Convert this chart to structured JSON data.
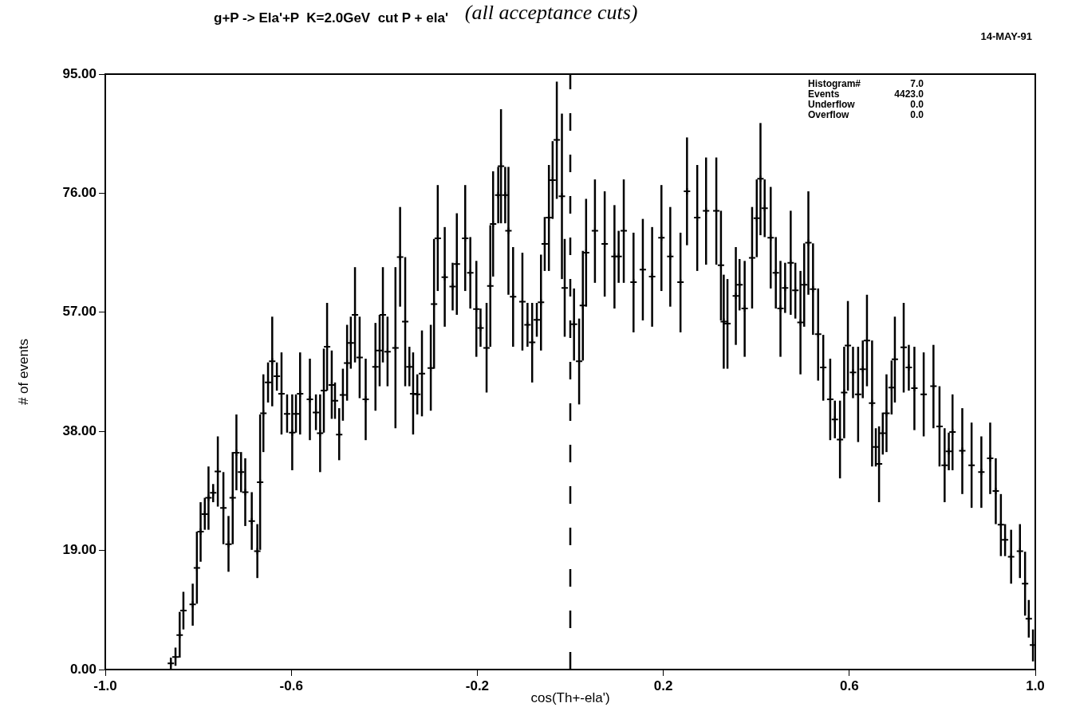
{
  "chart_data": {
    "type": "scatter",
    "title": "g+P -> Ela'+P  K=2.0GeV  cut P + ela'",
    "xlabel": "cos(Th+-ela')",
    "ylabel": "# of events",
    "annotations": [
      "(all acceptance cuts)",
      "14-MAY-91",
      "Histogram#  7.0",
      "Events  4423.0",
      "Underflow  0.0",
      "Overflow  0.0"
    ],
    "xlim": [
      -1,
      1
    ],
    "xticks": [
      {
        "value": -1,
        "label": "-1.0"
      },
      -0.6,
      -0.2,
      0.2,
      0.6,
      {
        "value": 1,
        "label": "1.0"
      }
    ],
    "ylim": [
      0,
      95
    ],
    "yticks": [
      {
        "value": 0,
        "label": "0.00"
      },
      {
        "value": 19,
        "label": "19.00"
      },
      {
        "value": 38,
        "label": "38.00"
      },
      {
        "value": 57,
        "label": "57.00"
      },
      {
        "value": 76,
        "label": "76.00"
      },
      {
        "value": 95,
        "label": "95.00"
      }
    ],
    "grid": false,
    "legend": false,
    "marker": "cross",
    "ref_lines": [
      {
        "axis": "x",
        "value": 0,
        "line_style": "dashed",
        "color": "#000000"
      }
    ],
    "series": [
      {
        "color": "#000000",
        "x": [
          -0.859,
          -0.849,
          -0.84,
          -0.832,
          -0.812,
          -0.803,
          -0.795,
          -0.786,
          -0.778,
          -0.768,
          -0.758,
          -0.746,
          -0.735,
          -0.726,
          -0.718,
          -0.708,
          -0.699,
          -0.685,
          -0.673,
          -0.667,
          -0.66,
          -0.65,
          -0.641,
          -0.631,
          -0.621,
          -0.609,
          -0.598,
          -0.59,
          -0.581,
          -0.56,
          -0.547,
          -0.538,
          -0.53,
          -0.523,
          -0.513,
          -0.506,
          -0.497,
          -0.489,
          -0.48,
          -0.472,
          -0.463,
          -0.453,
          -0.44,
          -0.419,
          -0.41,
          -0.403,
          -0.393,
          -0.376,
          -0.366,
          -0.355,
          -0.346,
          -0.338,
          -0.329,
          -0.319,
          -0.3,
          -0.293,
          -0.285,
          -0.27,
          -0.253,
          -0.244,
          -0.226,
          -0.215,
          -0.202,
          -0.193,
          -0.18,
          -0.172,
          -0.166,
          -0.155,
          -0.149,
          -0.14,
          -0.133,
          -0.123,
          -0.103,
          -0.092,
          -0.082,
          -0.072,
          -0.063,
          -0.055,
          -0.046,
          -0.038,
          -0.029,
          -0.018,
          -0.012,
          0.008,
          0.019,
          0.027,
          0.034,
          0.053,
          0.074,
          0.095,
          0.104,
          0.115,
          0.136,
          0.156,
          0.176,
          0.196,
          0.215,
          0.237,
          0.251,
          0.273,
          0.292,
          0.314,
          0.324,
          0.33,
          0.338,
          0.356,
          0.364,
          0.375,
          0.391,
          0.401,
          0.409,
          0.418,
          0.431,
          0.442,
          0.452,
          0.462,
          0.474,
          0.484,
          0.495,
          0.503,
          0.512,
          0.522,
          0.533,
          0.544,
          0.559,
          0.569,
          0.58,
          0.589,
          0.597,
          0.608,
          0.619,
          0.629,
          0.638,
          0.649,
          0.657,
          0.664,
          0.672,
          0.68,
          0.691,
          0.698,
          0.717,
          0.728,
          0.74,
          0.76,
          0.781,
          0.794,
          0.805,
          0.814,
          0.822,
          0.843,
          0.863,
          0.884,
          0.903,
          0.915,
          0.926,
          0.935,
          0.948,
          0.967,
          0.978,
          0.986,
          0.995
        ],
        "values": [
          1.0,
          2.0,
          5.5,
          9.4,
          10.4,
          16.2,
          22,
          24.8,
          27.4,
          28.2,
          31.6,
          25.8,
          20,
          27.4,
          34.6,
          31.5,
          28.3,
          23.7,
          18.9,
          29.9,
          40.9,
          45.8,
          49.2,
          46.8,
          44,
          40.8,
          37.8,
          40.8,
          44,
          43.1,
          41,
          37.7,
          44.5,
          51.5,
          45.4,
          42.9,
          37.5,
          43.8,
          48.9,
          52.1,
          56.6,
          49.8,
          43.1,
          48.3,
          50.9,
          56.6,
          50.7,
          51.3,
          65.8,
          55.5,
          48.3,
          44,
          43.9,
          47.2,
          48.1,
          58.3,
          68.8,
          62.6,
          61.1,
          64.7,
          68.8,
          63.3,
          57.5,
          54.5,
          51.3,
          61.2,
          71.1,
          75.7,
          80.3,
          75.7,
          70,
          59.5,
          58.7,
          55,
          52.2,
          55.8,
          58.6,
          67.9,
          72.1,
          78.1,
          84.5,
          75.5,
          60.9,
          55.1,
          49.2,
          58.1,
          66.5,
          70,
          67.9,
          65.9,
          65.9,
          70,
          61.8,
          63.8,
          62.7,
          68.9,
          65.9,
          61.8,
          76.3,
          72.1,
          73.2,
          73.2,
          64.5,
          55.5,
          55.2,
          59.6,
          61.4,
          57.6,
          65.7,
          72,
          78.3,
          73.6,
          68.9,
          63.3,
          57.6,
          60.9,
          64.9,
          60.5,
          55.4,
          61.4,
          68.1,
          60.7,
          53.5,
          48.2,
          43.1,
          39.9,
          36.7,
          44.2,
          51.7,
          47.4,
          43.9,
          47.9,
          52.5,
          42.5,
          35.5,
          32.8,
          37.7,
          40.9,
          45,
          49.5,
          51.4,
          48.2,
          44.9,
          43.9,
          45.2,
          38.8,
          32.6,
          34.8,
          37.9,
          34.9,
          32.6,
          31.5,
          33.7,
          28.5,
          23.1,
          20.7,
          18,
          18.9,
          13.7,
          8.1,
          3.9
        ],
        "errors": [
          [
            0,
            1.9
          ],
          [
            0.6,
            3.5
          ],
          [
            1.9,
            9.2
          ],
          [
            6.4,
            12.4
          ],
          [
            7,
            13.7
          ],
          [
            10.5,
            22
          ],
          [
            17.2,
            26.7
          ],
          [
            22.3,
            27.4
          ],
          [
            22.3,
            32.4
          ],
          [
            26.7,
            29.6
          ],
          [
            26,
            37.2
          ],
          [
            20,
            31.5
          ],
          [
            15.6,
            24.5
          ],
          [
            20,
            34.7
          ],
          [
            28.6,
            40.7
          ],
          [
            28.3,
            34.7
          ],
          [
            22.9,
            33.7
          ],
          [
            19.1,
            28.3
          ],
          [
            14.6,
            23.2
          ],
          [
            19.1,
            40.7
          ],
          [
            34.7,
            47.1
          ],
          [
            42.6,
            49
          ],
          [
            42,
            56.3
          ],
          [
            44.5,
            49
          ],
          [
            37.5,
            50.6
          ],
          [
            37.8,
            43.9
          ],
          [
            31.8,
            43.9
          ],
          [
            37.8,
            43.9
          ],
          [
            37.5,
            50.6
          ],
          [
            36.6,
            49.6
          ],
          [
            38.2,
            43.9
          ],
          [
            31.5,
            43.9
          ],
          [
            37.8,
            51.2
          ],
          [
            44.5,
            58.5
          ],
          [
            40,
            50.9
          ],
          [
            40,
            45.8
          ],
          [
            33.4,
            41.7
          ],
          [
            39.7,
            48
          ],
          [
            42.9,
            55
          ],
          [
            48,
            56.3
          ],
          [
            49,
            64.2
          ],
          [
            43.3,
            56.3
          ],
          [
            36.6,
            49.6
          ],
          [
            41.3,
            55.3
          ],
          [
            45.2,
            56.6
          ],
          [
            49,
            64.2
          ],
          [
            45.2,
            56.3
          ],
          [
            38.5,
            64.2
          ],
          [
            57.9,
            73.8
          ],
          [
            45.2,
            65.8
          ],
          [
            45.2,
            51.5
          ],
          [
            37.5,
            50.6
          ],
          [
            40.7,
            47.1
          ],
          [
            40.4,
            54.1
          ],
          [
            41.3,
            55
          ],
          [
            48,
            68.7
          ],
          [
            60.4,
            77.3
          ],
          [
            54.7,
            70.6
          ],
          [
            57.3,
            64.9
          ],
          [
            56.6,
            72.8
          ],
          [
            60.4,
            77.3
          ],
          [
            57.6,
            69
          ],
          [
            49.9,
            65.2
          ],
          [
            51.5,
            57.6
          ],
          [
            44.2,
            58.5
          ],
          [
            51.5,
            70.9
          ],
          [
            62.7,
            79.5
          ],
          [
            71.2,
            80.2
          ],
          [
            71.2,
            89.4
          ],
          [
            71.2,
            80.2
          ],
          [
            59.8,
            80.2
          ],
          [
            51.5,
            67.4
          ],
          [
            50.9,
            66.5
          ],
          [
            51.5,
            58.5
          ],
          [
            45.8,
            58.5
          ],
          [
            53.1,
            58.5
          ],
          [
            50.9,
            66.2
          ],
          [
            63.6,
            72.2
          ],
          [
            63.6,
            80.5
          ],
          [
            71.9,
            84.3
          ],
          [
            75.1,
            93.8
          ],
          [
            62.3,
            88.7
          ],
          [
            53.1,
            68.7
          ],
          [
            49.3,
            60.8
          ],
          [
            42.3,
            56
          ],
          [
            49.3,
            66.8
          ],
          [
            57.9,
            75.1
          ],
          [
            61.7,
            78.2
          ],
          [
            59.5,
            76.3
          ],
          [
            57.6,
            74.1
          ],
          [
            61.7,
            70
          ],
          [
            61.7,
            78.2
          ],
          [
            53.8,
            69.7
          ],
          [
            55.7,
            71.9
          ],
          [
            54.7,
            70.6
          ],
          [
            60.4,
            77.3
          ],
          [
            57.9,
            73.8
          ],
          [
            53.8,
            69.7
          ],
          [
            67.7,
            84.9
          ],
          [
            63.6,
            80.5
          ],
          [
            64.6,
            81.7
          ],
          [
            64.6,
            81.7
          ],
          [
            55.7,
            73.2
          ],
          [
            48,
            63
          ],
          [
            48,
            62.3
          ],
          [
            51.8,
            67.4
          ],
          [
            57.3,
            65.5
          ],
          [
            49.9,
            65.2
          ],
          [
            57.6,
            73.8
          ],
          [
            65.8,
            78.2
          ],
          [
            69.3,
            87.2
          ],
          [
            69,
            78.2
          ],
          [
            60.8,
            77
          ],
          [
            57.6,
            69
          ],
          [
            49.9,
            65.2
          ],
          [
            56.9,
            64.9
          ],
          [
            56.6,
            73.2
          ],
          [
            56,
            64.9
          ],
          [
            47.1,
            63.6
          ],
          [
            54.7,
            68
          ],
          [
            59.8,
            76.3
          ],
          [
            53.4,
            68
          ],
          [
            46.1,
            60.8
          ],
          [
            42.9,
            53.4
          ],
          [
            36.6,
            49.6
          ],
          [
            36.9,
            42.9
          ],
          [
            30.5,
            42.9
          ],
          [
            36.9,
            51.5
          ],
          [
            44.5,
            58.8
          ],
          [
            43.3,
            51.5
          ],
          [
            36.3,
            51.5
          ],
          [
            43.3,
            52.5
          ],
          [
            45.2,
            59.8
          ],
          [
            32.4,
            52.5
          ],
          [
            32.4,
            38.5
          ],
          [
            26.7,
            38.8
          ],
          [
            34.3,
            41
          ],
          [
            34.7,
            47.1
          ],
          [
            40.7,
            49.3
          ],
          [
            42.6,
            56.3
          ],
          [
            44.2,
            58.5
          ],
          [
            44.5,
            51.8
          ],
          [
            38.2,
            51.5
          ],
          [
            37.2,
            50.6
          ],
          [
            38.5,
            51.8
          ],
          [
            32.4,
            45.2
          ],
          [
            26.7,
            38.5
          ],
          [
            31.8,
            37.8
          ],
          [
            31.8,
            43.9
          ],
          [
            28,
            41.7
          ],
          [
            25.8,
            39.4
          ],
          [
            25.8,
            37.2
          ],
          [
            28,
            39.4
          ],
          [
            23.2,
            33.7
          ],
          [
            18.1,
            28
          ],
          [
            18.1,
            23.2
          ],
          [
            13.7,
            22.3
          ],
          [
            14.6,
            23.2
          ],
          [
            8.6,
            18.8
          ],
          [
            5.1,
            11.1
          ],
          [
            1.3,
            6.4
          ]
        ]
      }
    ]
  }
}
